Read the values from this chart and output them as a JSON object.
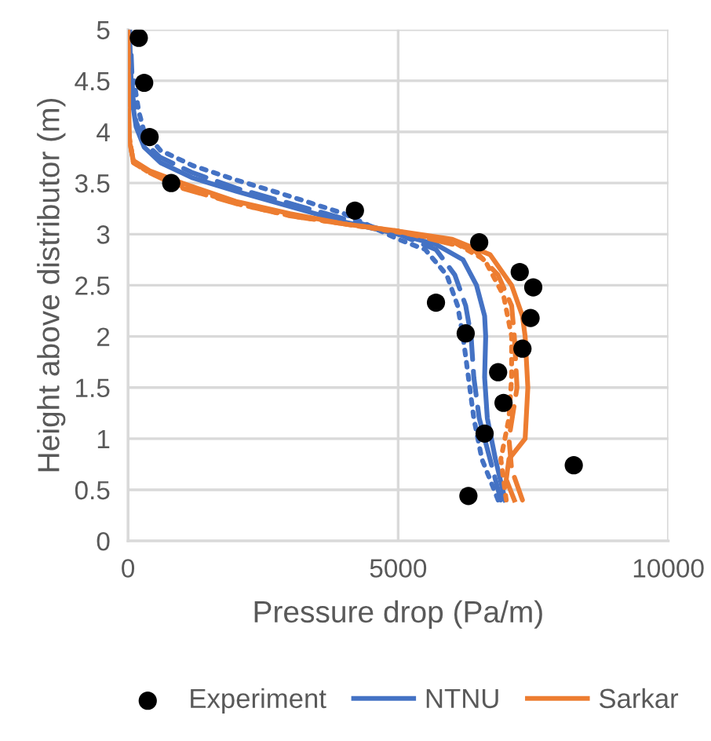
{
  "chart_data": {
    "type": "line",
    "xlabel": "Pressure drop (Pa/m)",
    "ylabel": "Height above distributor (m)",
    "xlim": [
      0,
      10000
    ],
    "xticks": [
      0,
      5000,
      10000
    ],
    "ylim": [
      0,
      5
    ],
    "yticks": [
      0,
      0.5,
      1,
      1.5,
      2,
      2.5,
      3,
      3.5,
      4,
      4.5,
      5
    ],
    "grid": true,
    "legend": "bottom",
    "series": [
      {
        "name": "Experiment",
        "type": "scatter",
        "marker": "circle",
        "color": "#000000",
        "x": [
          200,
          300,
          400,
          800,
          4200,
          6500,
          7250,
          7500,
          7450,
          5700,
          6250,
          7300,
          6850,
          6950,
          6600,
          8250,
          6300
        ],
        "values": [
          4.92,
          4.48,
          3.95,
          3.5,
          3.23,
          2.92,
          2.63,
          2.48,
          2.18,
          2.33,
          2.03,
          1.88,
          1.65,
          1.35,
          1.05,
          0.74,
          0.44
        ]
      },
      {
        "name": "NTNU",
        "color": "#4472c4",
        "line_style": "solid",
        "x": [
          6980,
          6800,
          6650,
          6600,
          6620,
          6600,
          6450,
          6200,
          5700,
          5000,
          4000,
          3000,
          2000,
          1200,
          600,
          300,
          150,
          80,
          50,
          30
        ],
        "values": [
          0.4,
          0.8,
          1.2,
          1.6,
          2.0,
          2.2,
          2.5,
          2.75,
          2.9,
          3.0,
          3.12,
          3.27,
          3.42,
          3.55,
          3.7,
          3.85,
          4.05,
          4.3,
          4.6,
          5.0
        ]
      },
      {
        "color": "#4472c4",
        "line_style": "dashed",
        "x": [
          6900,
          6700,
          6500,
          6400,
          6350,
          6250,
          6050,
          5700,
          5000,
          4000,
          3000,
          2000,
          1200,
          600,
          300,
          150,
          90,
          60
        ],
        "values": [
          0.4,
          0.8,
          1.2,
          1.6,
          2.0,
          2.3,
          2.6,
          2.85,
          3.0,
          3.15,
          3.3,
          3.45,
          3.6,
          3.75,
          3.9,
          4.1,
          4.35,
          4.75
        ]
      },
      {
        "color": "#4472c4",
        "line_style": "dotted",
        "x": [
          6850,
          6550,
          6400,
          6300,
          6200,
          6100,
          5900,
          5500,
          5000,
          4000,
          3000,
          2000,
          1200,
          600,
          300,
          200,
          110
        ],
        "values": [
          0.4,
          0.8,
          1.2,
          1.6,
          2.0,
          2.3,
          2.6,
          2.85,
          2.95,
          3.2,
          3.37,
          3.53,
          3.67,
          3.82,
          4.0,
          4.2,
          4.5
        ]
      },
      {
        "name": "Sarkar",
        "color": "#ed7d31",
        "line_style": "solid",
        "x": [
          7150,
          7000,
          7050,
          7350,
          7400,
          7350,
          7300,
          7100,
          6700,
          6000,
          5000,
          4000,
          3000,
          2000,
          1000,
          400,
          100,
          30,
          10,
          0
        ],
        "values": [
          0.4,
          0.6,
          0.8,
          1.0,
          1.5,
          2.0,
          2.2,
          2.5,
          2.8,
          2.95,
          3.03,
          3.1,
          3.2,
          3.32,
          3.5,
          3.62,
          3.72,
          3.9,
          4.3,
          5.0
        ]
      },
      {
        "color": "#ed7d31",
        "line_style": "dashed",
        "x": [
          7300,
          7100,
          7050,
          7200,
          7150,
          7100,
          6850,
          6400,
          5000,
          4000,
          3000,
          2000,
          1000,
          400,
          100,
          10,
          0
        ],
        "values": [
          0.4,
          0.7,
          1.0,
          1.5,
          2.0,
          2.3,
          2.6,
          2.85,
          3.03,
          3.1,
          3.18,
          3.3,
          3.45,
          3.6,
          3.7,
          4.0,
          5.0
        ]
      },
      {
        "color": "#ed7d31",
        "line_style": "dotted",
        "x": [
          7000,
          6900,
          7050,
          7100,
          7100,
          6950,
          6600,
          6000,
          5000,
          4000,
          3000,
          2000,
          1000,
          400,
          100,
          10,
          0
        ],
        "values": [
          0.4,
          0.8,
          1.2,
          1.6,
          2.0,
          2.4,
          2.75,
          2.93,
          3.02,
          3.1,
          3.18,
          3.3,
          3.47,
          3.6,
          3.7,
          4.0,
          5.0
        ]
      }
    ]
  }
}
